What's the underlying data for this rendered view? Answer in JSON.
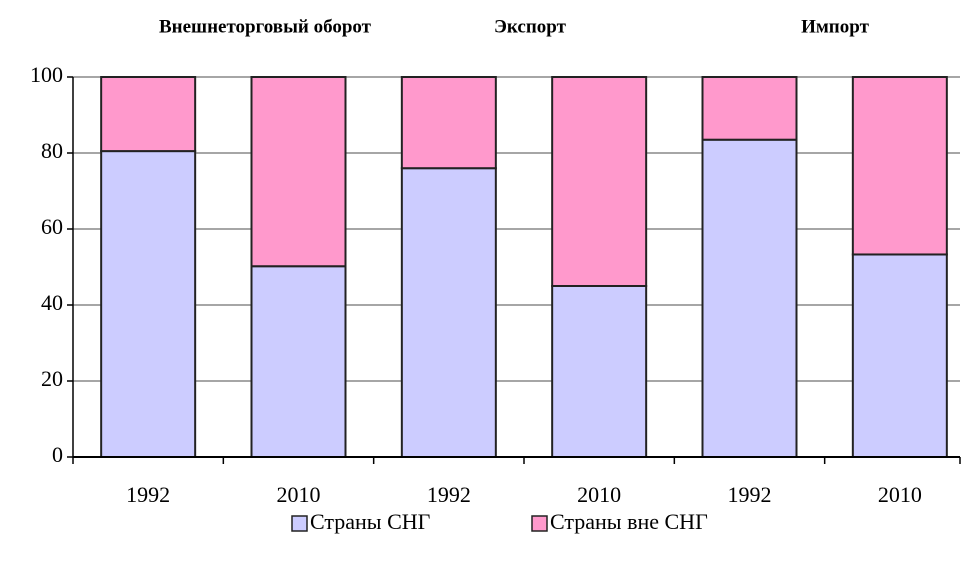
{
  "chart_data": {
    "type": "stacked_bar",
    "groups": [
      "Внешнеторговый оборот",
      "Экспорт",
      "Импорт"
    ],
    "categories": [
      "1992",
      "2010",
      "1992",
      "2010",
      "1992",
      "2010"
    ],
    "series": [
      {
        "name": "Страны СНГ",
        "color": "#ccccff",
        "values": [
          80.5,
          50.2,
          76,
          45,
          83.5,
          53.3
        ]
      },
      {
        "name": "Страны вне СНГ",
        "color": "#ff99cc",
        "values": [
          19.5,
          49.8,
          24,
          55,
          16.5,
          46.7
        ]
      }
    ],
    "ylim": [
      0,
      100
    ],
    "yticks": [
      0,
      20,
      40,
      60,
      80,
      100
    ],
    "grid": true,
    "legend": "bottom"
  }
}
